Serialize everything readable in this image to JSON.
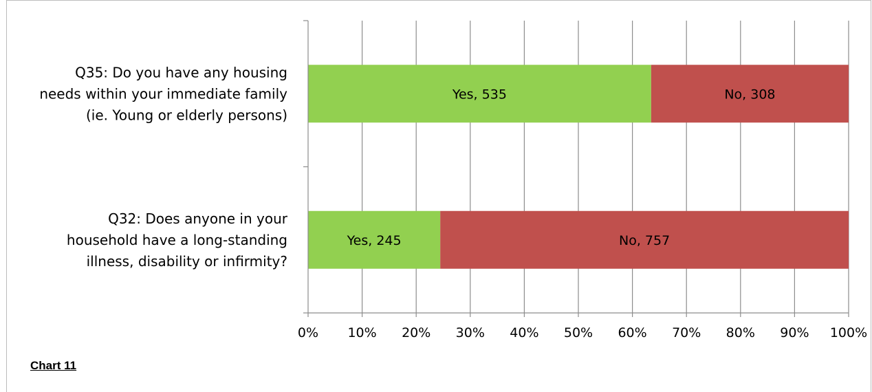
{
  "chart_note": "Chart 11",
  "chart_data": {
    "type": "bar",
    "orientation": "horizontal",
    "stacked": "percent",
    "categories": [
      [
        "Q35: Do you have any housing",
        "needs within your immediate family",
        "(ie. Young or elderly persons)"
      ],
      [
        "Q32: Does anyone in your",
        "household have a long-standing",
        "illness, disability or infirmity?"
      ]
    ],
    "series": [
      {
        "name": "Yes",
        "values": [
          535,
          245
        ],
        "color": "#92d050"
      },
      {
        "name": "No",
        "values": [
          308,
          757
        ],
        "color": "#c0504d"
      }
    ],
    "data_labels": [
      [
        "Yes, 535",
        "Yes, 245"
      ],
      [
        "No, 308",
        "No, 757"
      ]
    ],
    "x_ticks": [
      "0%",
      "10%",
      "20%",
      "30%",
      "40%",
      "50%",
      "60%",
      "70%",
      "80%",
      "90%",
      "100%"
    ],
    "xlim": [
      0,
      100
    ],
    "grid": true,
    "legend": "none"
  }
}
